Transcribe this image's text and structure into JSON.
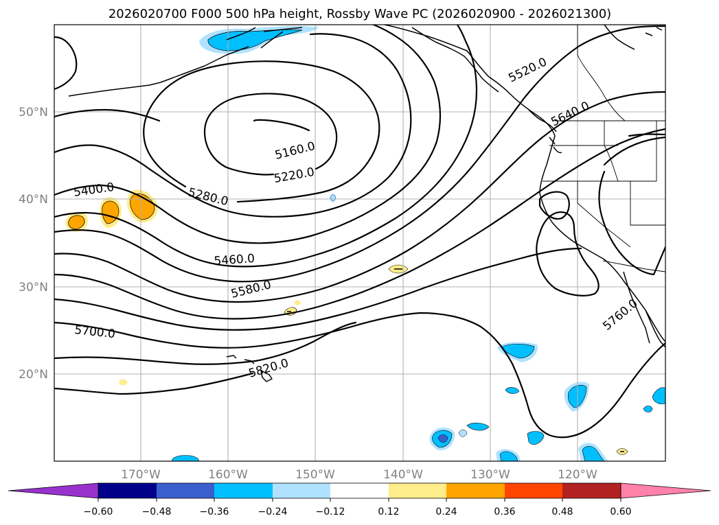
{
  "title": "2026020700 F000 500 hPa height, Rossby Wave PC (2026020900 - 2026021300)",
  "lat_labels": [
    "50°N",
    "40°N",
    "30°N",
    "20°N"
  ],
  "lon_labels": [
    "170°W",
    "160°W",
    "150°W",
    "140°W",
    "130°W",
    "120°W"
  ],
  "contour_labels": [
    "5160.0",
    "5220.0",
    "5280.0",
    "5400.0",
    "5460.0",
    "5520.0",
    "5580.0",
    "5640.0",
    "5700.0",
    "5760.0",
    "5820.0"
  ],
  "colorbar": {
    "ticks": [
      "−0.60",
      "−0.48",
      "−0.36",
      "−0.24",
      "−0.12",
      "0.12",
      "0.24",
      "0.36",
      "0.48",
      "0.60"
    ],
    "colors": [
      "#9932cc",
      "#00008b",
      "#3a5fcd",
      "#00bfff",
      "#b0e2ff",
      "#ffffff",
      "#ffec8b",
      "#ffa500",
      "#ff4500",
      "#b22222",
      "#ff82ab"
    ]
  },
  "colors": {
    "positive_light": "#ffec8b",
    "positive_mid": "#ffa500",
    "negative_light": "#b0e2ff",
    "negative_mid": "#00bfff",
    "negative_dark": "#3a5fcd",
    "negative_darkest": "#9932cc",
    "gridline": "#b0b0b0",
    "axis_label": "#808080"
  }
}
